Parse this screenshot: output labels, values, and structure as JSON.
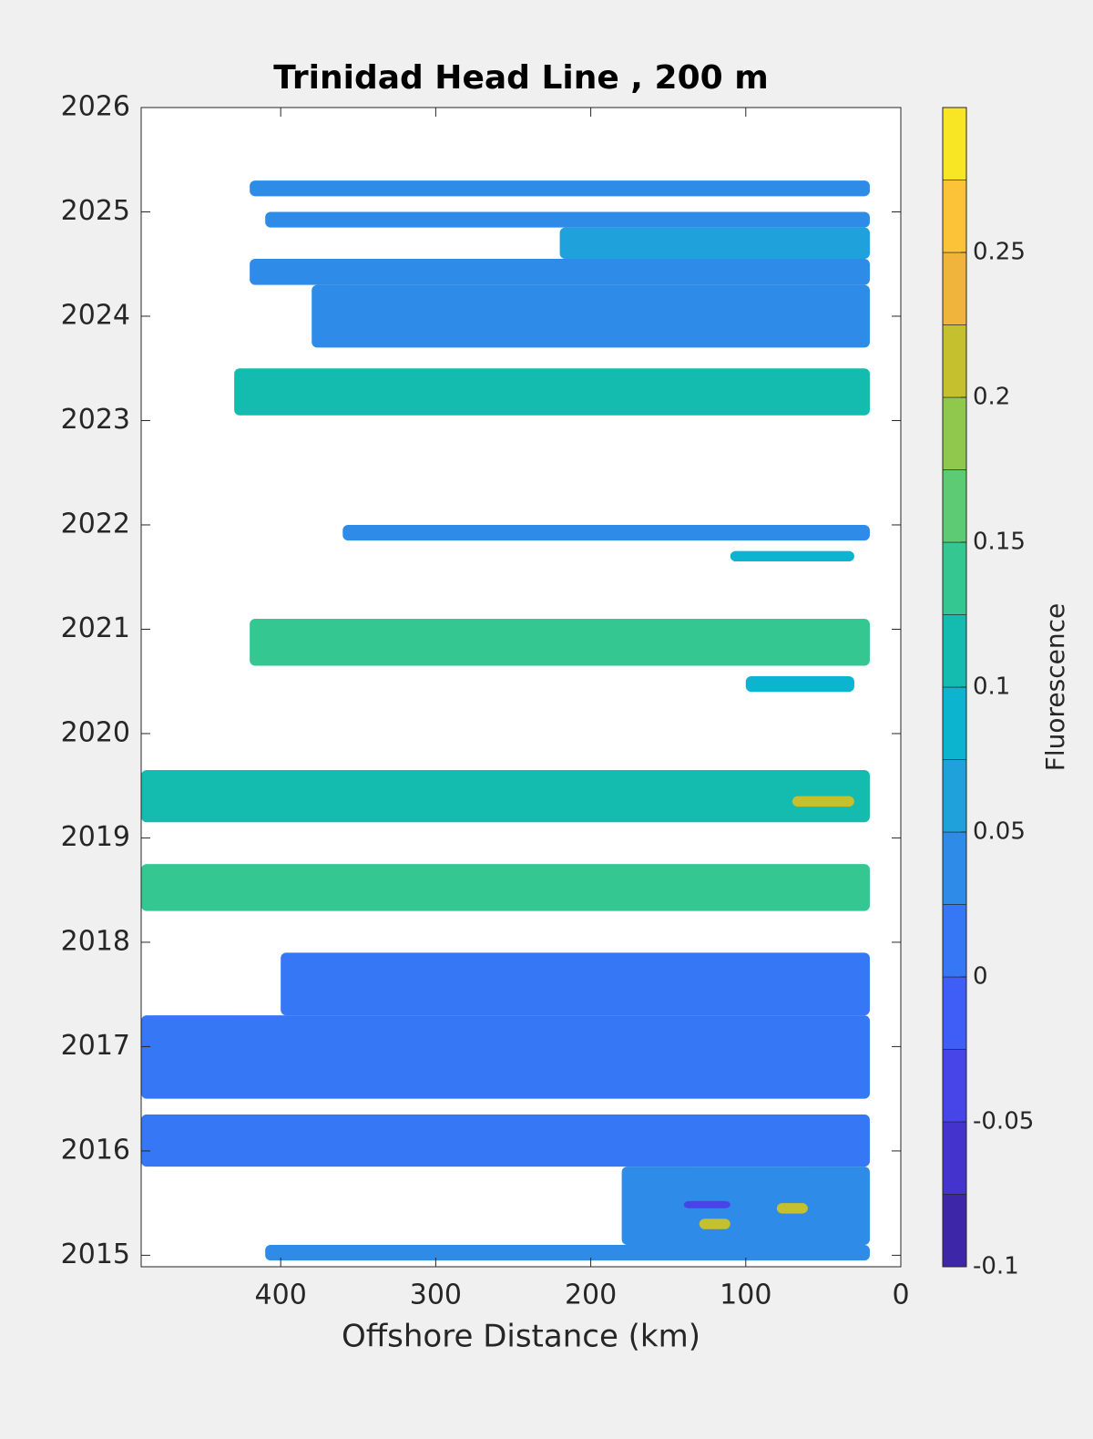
{
  "chart_data": {
    "type": "contour",
    "title": "Trinidad Head Line , 200 m",
    "xlabel": "Offshore Distance (km)",
    "colorbar_label": "Fluorescence",
    "xlim": [
      490,
      0
    ],
    "xticks": [
      400,
      300,
      200,
      100,
      0
    ],
    "ylim": [
      2014.89,
      2026
    ],
    "yticks": [
      2015,
      2016,
      2017,
      2018,
      2019,
      2020,
      2021,
      2022,
      2023,
      2024,
      2025,
      2026
    ],
    "clim": [
      -0.1,
      0.3
    ],
    "cticks": [
      -0.1,
      -0.05,
      0,
      0.05,
      0.1,
      0.15,
      0.2,
      0.25
    ],
    "colormap": [
      "#3d26a8",
      "#4433cc",
      "#4745e8",
      "#3f5ef8",
      "#3677f5",
      "#2e8ce8",
      "#1fa2db",
      "#0cb4cf",
      "#14bcb0",
      "#35c792",
      "#5ccb74",
      "#8fc84c",
      "#c4c02e",
      "#f0b43c",
      "#fcc338",
      "#f8e624"
    ],
    "patches": [
      {
        "x": [
          420,
          20
        ],
        "y": [
          2025.15,
          2025.3
        ],
        "value": 0.04
      },
      {
        "x": [
          410,
          20
        ],
        "y": [
          2024.85,
          2025.0
        ],
        "value": 0.045
      },
      {
        "x": [
          220,
          20
        ],
        "y": [
          2024.55,
          2024.85
        ],
        "value": 0.06
      },
      {
        "x": [
          420,
          20
        ],
        "y": [
          2024.3,
          2024.55
        ],
        "value": 0.045
      },
      {
        "x": [
          380,
          20
        ],
        "y": [
          2023.7,
          2024.3
        ],
        "value": 0.04
      },
      {
        "x": [
          430,
          20
        ],
        "y": [
          2023.05,
          2023.5
        ],
        "value": 0.12
      },
      {
        "x": [
          360,
          20
        ],
        "y": [
          2021.85,
          2022.0
        ],
        "value": 0.035
      },
      {
        "x": [
          110,
          30
        ],
        "y": [
          2021.65,
          2021.75
        ],
        "value": 0.09
      },
      {
        "x": [
          420,
          20
        ],
        "y": [
          2020.65,
          2021.1
        ],
        "value": 0.14
      },
      {
        "x": [
          100,
          30
        ],
        "y": [
          2020.4,
          2020.55
        ],
        "value": 0.08
      },
      {
        "x": [
          490,
          20
        ],
        "y": [
          2019.15,
          2019.65
        ],
        "value": 0.1
      },
      {
        "x": [
          70,
          30
        ],
        "y": [
          2019.3,
          2019.4
        ],
        "value": 0.22
      },
      {
        "x": [
          490,
          20
        ],
        "y": [
          2018.3,
          2018.75
        ],
        "value": 0.13
      },
      {
        "x": [
          400,
          20
        ],
        "y": [
          2017.3,
          2017.9
        ],
        "value": 0.015
      },
      {
        "x": [
          490,
          20
        ],
        "y": [
          2016.5,
          2017.3
        ],
        "value": 0.015
      },
      {
        "x": [
          490,
          20
        ],
        "y": [
          2015.85,
          2016.35
        ],
        "value": 0.015
      },
      {
        "x": [
          180,
          20
        ],
        "y": [
          2015.1,
          2015.85
        ],
        "value": 0.03
      },
      {
        "x": [
          410,
          20
        ],
        "y": [
          2014.95,
          2015.1
        ],
        "value": 0.03
      },
      {
        "x": [
          140,
          110
        ],
        "y": [
          2015.45,
          2015.52
        ],
        "value": -0.04
      },
      {
        "x": [
          130,
          110
        ],
        "y": [
          2015.25,
          2015.35
        ],
        "value": 0.2
      },
      {
        "x": [
          80,
          60
        ],
        "y": [
          2015.4,
          2015.5
        ],
        "value": 0.22
      }
    ]
  }
}
